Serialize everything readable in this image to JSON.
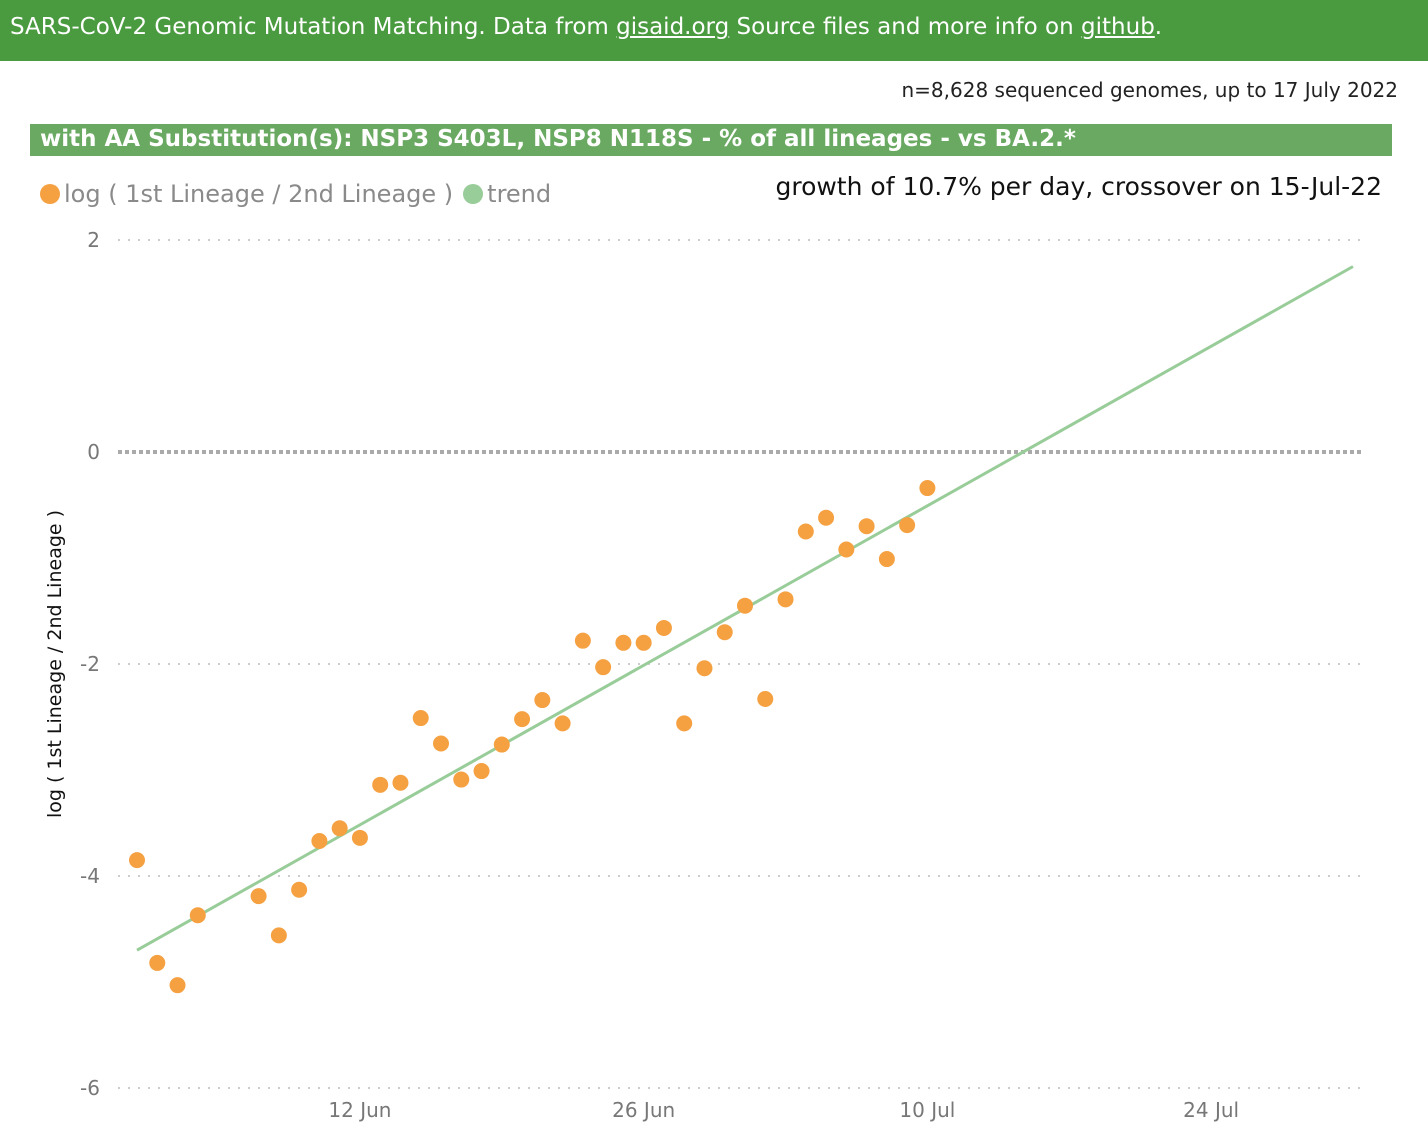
{
  "header": {
    "prefix": "SARS-CoV-2 Genomic Mutation Matching. Data from ",
    "link1": "gisaid.org",
    "middle": " Source files and more info on ",
    "link2": "github",
    "suffix": "."
  },
  "samples_text": "n=8,628 sequenced genomes, up to 17 July 2022",
  "chart_title": "with AA Substitution(s): NSP3 S403L, NSP8 N118S - % of all lineages -  vs BA.2.*",
  "growth_text": "growth of 10.7% per day, crossover on 15-Jul-22",
  "legend": [
    {
      "label": "log ( 1st Lineage / 2nd Lineage )",
      "color": "#f5a142"
    },
    {
      "label": "trend",
      "color": "#98cc98"
    }
  ],
  "colors": {
    "points": "#f5a142",
    "trend": "#98cc98",
    "zero_line": "#aaaaaa",
    "grid": "#cccccc"
  },
  "chart_data": {
    "type": "scatter",
    "title": "with AA Substitution(s): NSP3 S403L, NSP8 N118S - % of all lineages -  vs BA.2.*",
    "xlabel": "",
    "ylabel": "log ( 1st Lineage / 2nd Lineage )",
    "xlim": [
      "2022-05-31",
      "2022-08-01"
    ],
    "ylim": [
      -6,
      2
    ],
    "yticks": [
      2,
      0,
      -2,
      -4,
      -6
    ],
    "xticks": [
      {
        "date": "2022-06-12",
        "label": "12 Jun"
      },
      {
        "date": "2022-06-26",
        "label": "26 Jun"
      },
      {
        "date": "2022-07-10",
        "label": "10 Jul"
      },
      {
        "date": "2022-07-24",
        "label": "24 Jul"
      }
    ],
    "grid": "horizontal dotted",
    "legend_position": "top-left",
    "series": [
      {
        "name": "log ( 1st Lineage / 2nd Lineage )",
        "kind": "points",
        "points": [
          [
            "2022-06-01",
            -3.85
          ],
          [
            "2022-06-02",
            -4.82
          ],
          [
            "2022-06-03",
            -5.03
          ],
          [
            "2022-06-04",
            -4.37
          ],
          [
            "2022-06-07",
            -4.19
          ],
          [
            "2022-06-08",
            -4.56
          ],
          [
            "2022-06-09",
            -4.13
          ],
          [
            "2022-06-10",
            -3.67
          ],
          [
            "2022-06-11",
            -3.55
          ],
          [
            "2022-06-12",
            -3.64
          ],
          [
            "2022-06-13",
            -3.14
          ],
          [
            "2022-06-14",
            -3.12
          ],
          [
            "2022-06-15",
            -2.51
          ],
          [
            "2022-06-16",
            -2.75
          ],
          [
            "2022-06-17",
            -3.09
          ],
          [
            "2022-06-18",
            -3.01
          ],
          [
            "2022-06-19",
            -2.76
          ],
          [
            "2022-06-20",
            -2.52
          ],
          [
            "2022-06-21",
            -2.34
          ],
          [
            "2022-06-22",
            -2.56
          ],
          [
            "2022-06-23",
            -1.78
          ],
          [
            "2022-06-24",
            -2.03
          ],
          [
            "2022-06-25",
            -1.8
          ],
          [
            "2022-06-26",
            -1.8
          ],
          [
            "2022-06-27",
            -1.66
          ],
          [
            "2022-06-28",
            -2.56
          ],
          [
            "2022-06-29",
            -2.04
          ],
          [
            "2022-06-30",
            -1.7
          ],
          [
            "2022-07-01",
            -1.45
          ],
          [
            "2022-07-02",
            -2.33
          ],
          [
            "2022-07-03",
            -1.39
          ],
          [
            "2022-07-04",
            -0.75
          ],
          [
            "2022-07-05",
            -0.62
          ],
          [
            "2022-07-06",
            -0.92
          ],
          [
            "2022-07-07",
            -0.7
          ],
          [
            "2022-07-08",
            -1.01
          ],
          [
            "2022-07-09",
            -0.69
          ],
          [
            "2022-07-10",
            -0.34
          ]
        ]
      },
      {
        "name": "trend",
        "kind": "line",
        "points": [
          [
            "2022-06-01",
            -4.7
          ],
          [
            "2022-07-31",
            1.75
          ]
        ]
      }
    ]
  }
}
